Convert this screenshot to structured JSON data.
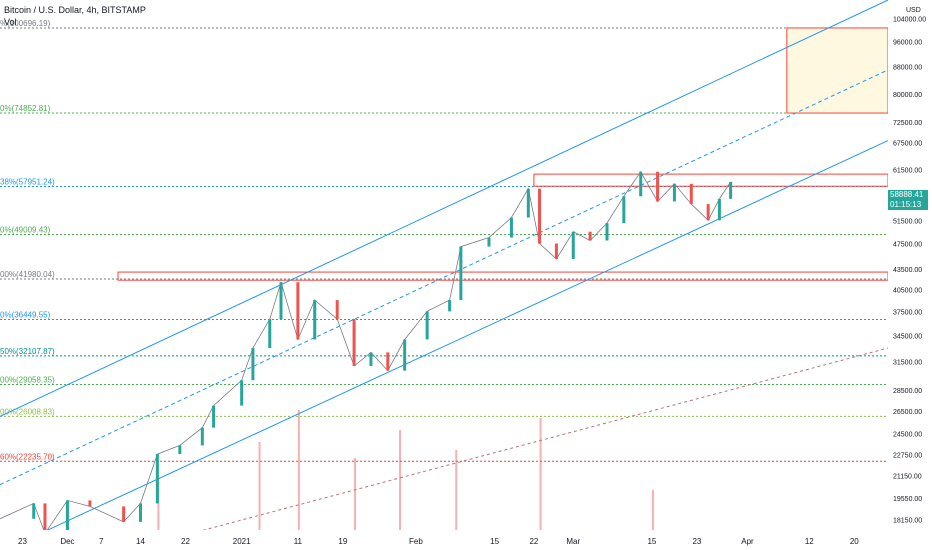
{
  "header": {
    "title": "Bitcoin / U.S. Dollar, 4h, BITSTAMP",
    "indicator": "Vol"
  },
  "axis": {
    "currency": "USD",
    "price_ticks": [
      {
        "label": "104000.00",
        "value": 104000
      },
      {
        "label": "96000.00",
        "value": 96000
      },
      {
        "label": "88000.00",
        "value": 88000
      },
      {
        "label": "80000.00",
        "value": 80000
      },
      {
        "label": "72500.00",
        "value": 72500
      },
      {
        "label": "67500.00",
        "value": 67500
      },
      {
        "label": "61500.00",
        "value": 61500
      },
      {
        "label": "51500.00",
        "value": 51500
      },
      {
        "label": "47500.00",
        "value": 47500
      },
      {
        "label": "43500.00",
        "value": 43500
      },
      {
        "label": "40500.00",
        "value": 40500
      },
      {
        "label": "37500.00",
        "value": 37500
      },
      {
        "label": "34500.00",
        "value": 34500
      },
      {
        "label": "31500.00",
        "value": 31500
      },
      {
        "label": "28500.00",
        "value": 28500
      },
      {
        "label": "26500.00",
        "value": 26500
      },
      {
        "label": "24500.00",
        "value": 24500
      },
      {
        "label": "22750.00",
        "value": 22750
      },
      {
        "label": "21150.00",
        "value": 21150
      },
      {
        "label": "19550.00",
        "value": 19550
      },
      {
        "label": "18150.00",
        "value": 18150
      }
    ],
    "time_ticks": [
      {
        "label": "23",
        "date": "2020-11-23"
      },
      {
        "label": "Dec",
        "date": "2020-12-01"
      },
      {
        "label": "7",
        "date": "2020-12-07"
      },
      {
        "label": "14",
        "date": "2020-12-14"
      },
      {
        "label": "22",
        "date": "2020-12-22"
      },
      {
        "label": "2021",
        "date": "2021-01-01"
      },
      {
        "label": "11",
        "date": "2021-01-11"
      },
      {
        "label": "19",
        "date": "2021-01-19"
      },
      {
        "label": "Feb",
        "date": "2021-02-01"
      },
      {
        "label": "15",
        "date": "2021-02-15"
      },
      {
        "label": "22",
        "date": "2021-02-22"
      },
      {
        "label": "Mar",
        "date": "2021-03-01"
      },
      {
        "label": "15",
        "date": "2021-03-15"
      },
      {
        "label": "23",
        "date": "2021-03-23"
      },
      {
        "label": "Apr",
        "date": "2021-04-01"
      },
      {
        "label": "12",
        "date": "2021-04-12"
      },
      {
        "label": "20",
        "date": "2021-04-20"
      }
    ]
  },
  "fib_levels": [
    {
      "label": "%(100696.19)",
      "value": 100696.19,
      "color": "#787b86"
    },
    {
      "label": "0%(74852.81)",
      "value": 74852.81,
      "color": "#4caf50"
    },
    {
      "label": "38%(57951.24)",
      "value": 57951.24,
      "color": "#2196f3"
    },
    {
      "label": "0%(49009.43)",
      "value": 49009.43,
      "color": "#4caf50"
    },
    {
      "label": "00%(41980.04)",
      "value": 41980.04,
      "color": "#787b86"
    },
    {
      "label": "0%(36449.55)",
      "value": 36449.55,
      "color": "#2196f3"
    },
    {
      "label": "50%(32107.87)",
      "value": 32107.87,
      "color": "#009688"
    },
    {
      "label": "00%(29058.35)",
      "value": 29058.35,
      "color": "#4caf50"
    },
    {
      "label": "00%(26008.83)",
      "value": 26008.83,
      "color": "#8bc34a"
    },
    {
      "label": "60%(22235.70)",
      "value": 22235.7,
      "color": "#f44336"
    }
  ],
  "last_price": {
    "value": 58888.41,
    "label": "58888.41",
    "countdown": "01:15:13",
    "color": "#26a69a"
  },
  "colors": {
    "up": "#26a69a",
    "down": "#ef5350",
    "channel": "#2196f3",
    "zone": "#f44336",
    "target_fill": "#fff8e1"
  },
  "chart_data": {
    "type": "candlestick",
    "title": "Bitcoin / U.S. Dollar, 4h, BITSTAMP",
    "ylim": [
      17500,
      111000
    ],
    "y_scale": "log",
    "x_range": [
      "2020-11-19",
      "2021-04-26"
    ],
    "series": [
      {
        "x": "2020-11-19",
        "y": 18200
      },
      {
        "x": "2020-11-25",
        "y": 19200
      },
      {
        "x": "2020-11-27",
        "y": 17300
      },
      {
        "x": "2020-12-01",
        "y": 19400
      },
      {
        "x": "2020-12-05",
        "y": 19000
      },
      {
        "x": "2020-12-11",
        "y": 18000
      },
      {
        "x": "2020-12-14",
        "y": 19200
      },
      {
        "x": "2020-12-17",
        "y": 22800
      },
      {
        "x": "2020-12-21",
        "y": 23500
      },
      {
        "x": "2020-12-25",
        "y": 25000
      },
      {
        "x": "2020-12-27",
        "y": 27000
      },
      {
        "x": "2021-01-01",
        "y": 29500
      },
      {
        "x": "2021-01-03",
        "y": 33000
      },
      {
        "x": "2021-01-06",
        "y": 36500
      },
      {
        "x": "2021-01-08",
        "y": 41500
      },
      {
        "x": "2021-01-11",
        "y": 34000
      },
      {
        "x": "2021-01-14",
        "y": 39000
      },
      {
        "x": "2021-01-18",
        "y": 36500
      },
      {
        "x": "2021-01-21",
        "y": 31000
      },
      {
        "x": "2021-01-24",
        "y": 32500
      },
      {
        "x": "2021-01-27",
        "y": 30500
      },
      {
        "x": "2021-01-30",
        "y": 34000
      },
      {
        "x": "2021-02-03",
        "y": 37500
      },
      {
        "x": "2021-02-07",
        "y": 39000
      },
      {
        "x": "2021-02-09",
        "y": 47000
      },
      {
        "x": "2021-02-14",
        "y": 48500
      },
      {
        "x": "2021-02-18",
        "y": 52000
      },
      {
        "x": "2021-02-21",
        "y": 57500
      },
      {
        "x": "2021-02-23",
        "y": 47500
      },
      {
        "x": "2021-02-26",
        "y": 45000
      },
      {
        "x": "2021-03-01",
        "y": 49500
      },
      {
        "x": "2021-03-04",
        "y": 48000
      },
      {
        "x": "2021-03-07",
        "y": 51000
      },
      {
        "x": "2021-03-10",
        "y": 56000
      },
      {
        "x": "2021-03-13",
        "y": 61000
      },
      {
        "x": "2021-03-16",
        "y": 55000
      },
      {
        "x": "2021-03-19",
        "y": 58500
      },
      {
        "x": "2021-03-22",
        "y": 54500
      },
      {
        "x": "2021-03-25",
        "y": 51500
      },
      {
        "x": "2021-03-27",
        "y": 55500
      },
      {
        "x": "2021-03-29",
        "y": 58888
      }
    ],
    "volume_series": [
      {
        "x": "2020-12-17",
        "y": 12
      },
      {
        "x": "2021-01-04",
        "y": 22
      },
      {
        "x": "2021-01-11",
        "y": 30
      },
      {
        "x": "2021-01-21",
        "y": 18
      },
      {
        "x": "2021-01-29",
        "y": 25
      },
      {
        "x": "2021-02-08",
        "y": 20
      },
      {
        "x": "2021-02-23",
        "y": 28
      },
      {
        "x": "2021-03-15",
        "y": 10
      }
    ]
  }
}
